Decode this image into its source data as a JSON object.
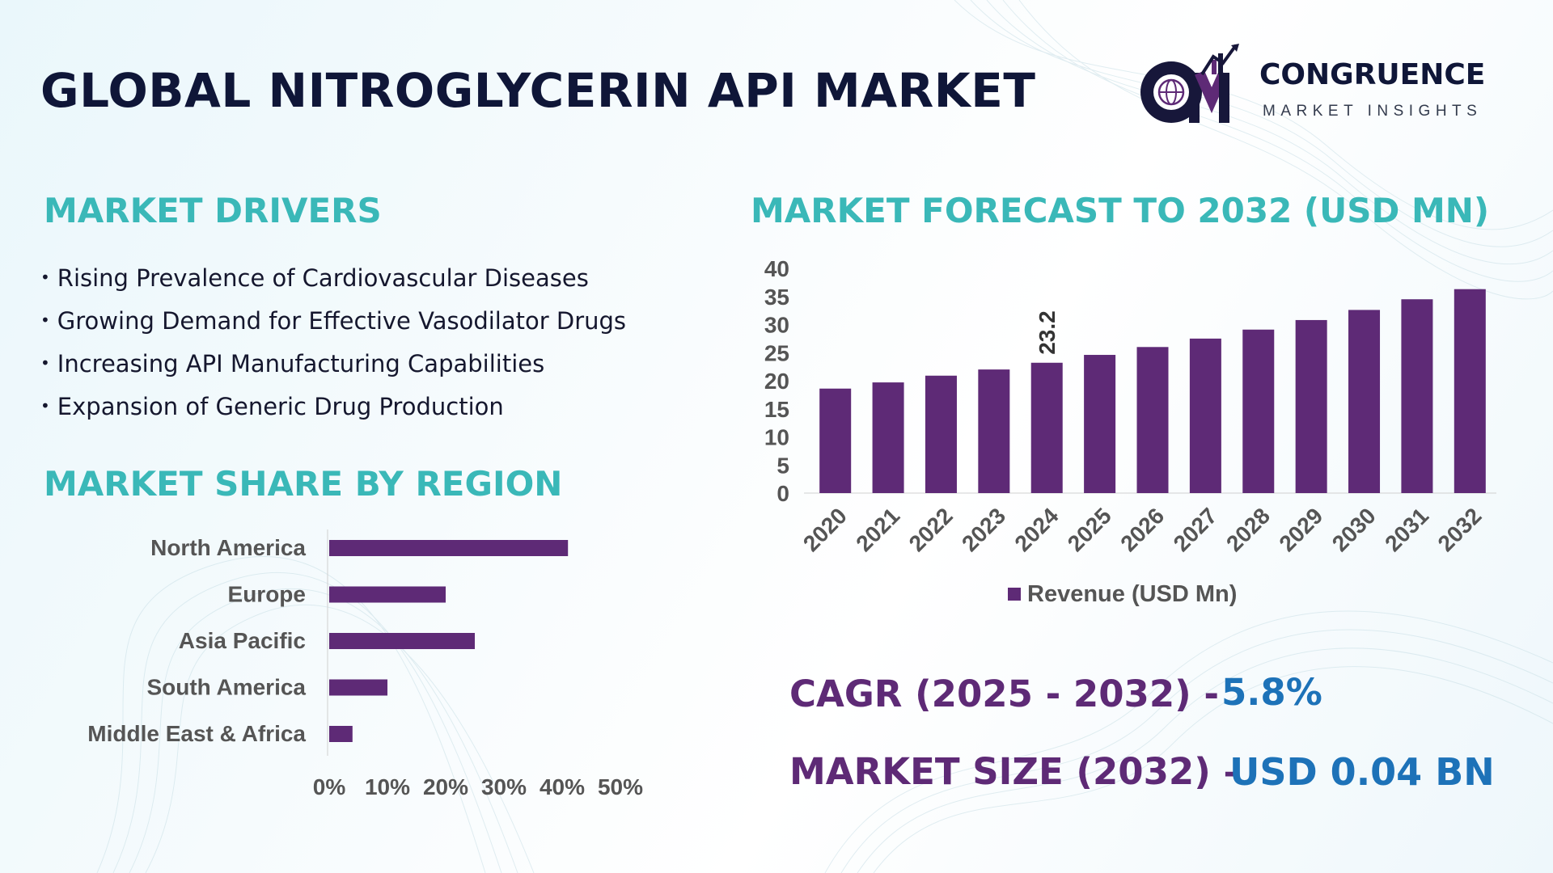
{
  "title": "GLOBAL NITROGLYCERIN API MARKET",
  "logo": {
    "name": "CONGRUENCE",
    "tagline": "MARKET INSIGHTS",
    "mark_letters": "CM"
  },
  "drivers": {
    "heading": "MARKET DRIVERS",
    "items": [
      "Rising Prevalence of Cardiovascular Diseases",
      "Growing Demand for Effective Vasodilator Drugs",
      "Increasing API Manufacturing Capabilities",
      "Expansion of Generic Drug Production"
    ]
  },
  "region": {
    "heading": "MARKET SHARE BY REGION"
  },
  "forecast": {
    "heading": "MARKET FORECAST TO 2032 (USD MN)"
  },
  "kpis": {
    "cagr_label": "CAGR (2025 - 2032) -",
    "cagr_value": "5.8%",
    "size_label": "MARKET SIZE (2032) –",
    "size_value": "USD 0.04 BN"
  },
  "colors": {
    "bar": "#5e2a76",
    "heading": "#3ab8b8",
    "title": "#0f1638",
    "kpi_label": "#5e2a76",
    "kpi_value": "#1d72b8"
  },
  "chart_data": [
    {
      "type": "bar",
      "orientation": "horizontal",
      "title": "MARKET SHARE BY REGION",
      "categories": [
        "North America",
        "Europe",
        "Asia Pacific",
        "South America",
        "Middle East & Africa"
      ],
      "values": [
        41,
        20,
        25,
        10,
        4
      ],
      "xlim": [
        0,
        50
      ],
      "xticks": [
        "0%",
        "10%",
        "20%",
        "30%",
        "40%",
        "50%"
      ],
      "grid": false
    },
    {
      "type": "bar",
      "orientation": "vertical",
      "title": "MARKET FORECAST TO 2032 (USD MN)",
      "categories": [
        "2020",
        "2021",
        "2022",
        "2023",
        "2024",
        "2025",
        "2026",
        "2027",
        "2028",
        "2029",
        "2030",
        "2031",
        "2032"
      ],
      "series": [
        {
          "name": "Revenue (USD Mn)",
          "values": [
            18.6,
            19.7,
            20.9,
            22.0,
            23.2,
            24.6,
            26.0,
            27.5,
            29.1,
            30.8,
            32.6,
            34.5,
            36.3
          ]
        }
      ],
      "ylim": [
        0,
        40
      ],
      "yticks": [
        "0",
        "5",
        "10",
        "15",
        "20",
        "25",
        "30",
        "35",
        "40"
      ],
      "annotations": [
        {
          "category": "2024",
          "label": "23.2"
        }
      ],
      "legend": "bottom",
      "grid": false
    }
  ]
}
